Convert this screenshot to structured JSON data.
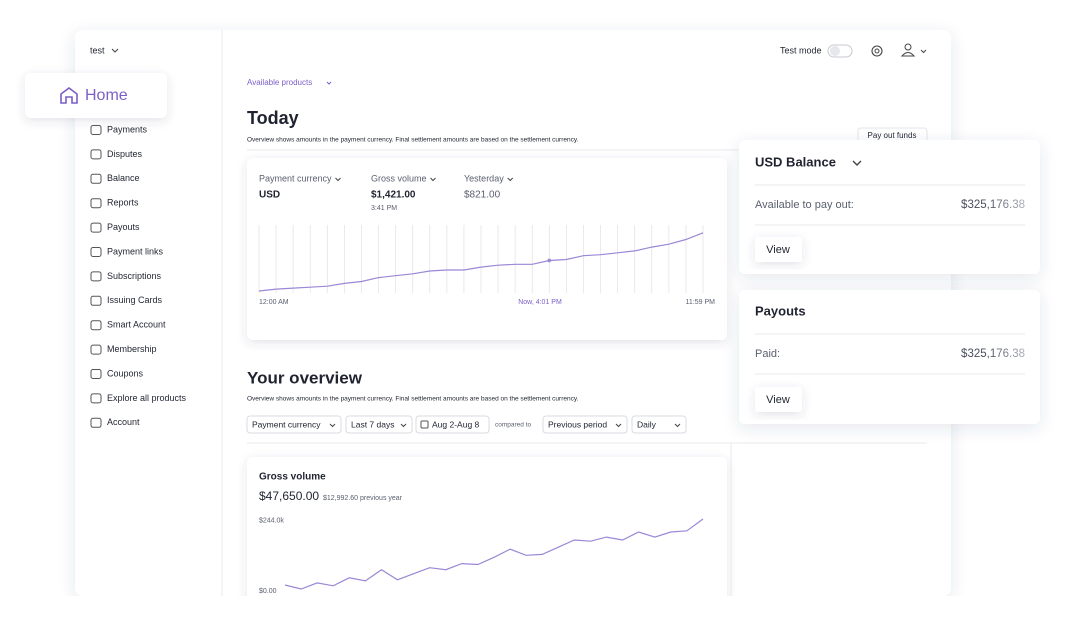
{
  "sidebar": {
    "account": "test",
    "home": "Home",
    "nav": [
      "Payments",
      "Disputes",
      "Balance",
      "Reports",
      "Payouts",
      "Payment links",
      "Subscriptions",
      "Issuing Cards",
      "Smart Account",
      "Membership",
      "Coupons",
      "Explore all products",
      "Account"
    ]
  },
  "topbar": {
    "test_mode": "Test mode"
  },
  "available_products": "Available products",
  "today": {
    "title": "Today",
    "description": "Overview shows amounts in the payment currency. Final settlement amounts are based on the settlement currency.",
    "pay_out_button": "Pay out funds",
    "stats": [
      {
        "label": "Payment currency",
        "value": "USD"
      },
      {
        "label": "Gross volume",
        "value": "$1,421.00",
        "sub": "3:41 PM"
      },
      {
        "label": "Yesterday",
        "value": "$821.00"
      }
    ],
    "chart_data": {
      "type": "line",
      "values": [
        0,
        2,
        3,
        4,
        5,
        8,
        10,
        14,
        16,
        18,
        21,
        22,
        22,
        25,
        27,
        28,
        28,
        32,
        33,
        37,
        38,
        40,
        42,
        46,
        49,
        54,
        61
      ],
      "ylim": [
        0,
        66
      ],
      "color": "#9b87d6",
      "x_labels": [
        "12:00 AM",
        "Now, 4:01 PM",
        "11:59 PM"
      ],
      "grid": true
    }
  },
  "balance_card": {
    "title": "USD Balance",
    "label": "Available to pay out:",
    "amount": "$325,176.38",
    "button": "View"
  },
  "payouts_card": {
    "title": "Payouts",
    "label": "Paid:",
    "amount": "$325,176.38",
    "button": "View"
  },
  "overview": {
    "title": "Your overview",
    "description": "Overview shows amounts in the payment currency. Final settlement amounts are based on the settlement currency.",
    "filters": {
      "currency": "Payment currency",
      "range": "Last 7 days",
      "dates": "Aug 2-Aug 8",
      "compared": "compared to",
      "period": "Previous period",
      "interval": "Daily"
    },
    "gross_volume": {
      "title": "Gross volume",
      "amount": "$47,650.00",
      "previous": "$12,992.60 previous year",
      "chart_data": {
        "type": "line",
        "values": [
          21,
          7,
          28,
          18,
          46,
          35,
          74,
          39,
          60,
          81,
          74,
          95,
          92,
          117,
          145,
          124,
          127,
          152,
          177,
          173,
          187,
          177,
          205,
          187,
          205,
          209,
          250
        ],
        "ylim": [
          0,
          250
        ],
        "yticks": [
          {
            "value": 244,
            "label": "$244.0k"
          },
          {
            "value": 0,
            "label": "$0.00"
          }
        ],
        "color": "#9b87d6"
      }
    }
  }
}
